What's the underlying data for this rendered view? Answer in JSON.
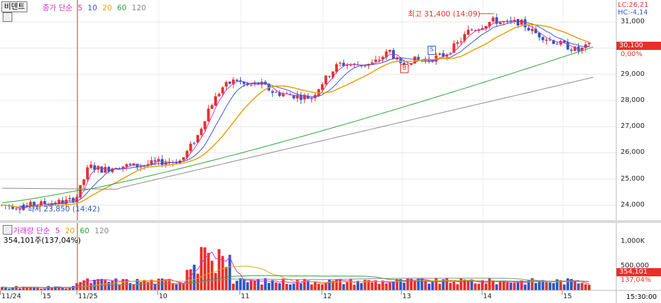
{
  "price_panel": {
    "legend_name": "비덴트",
    "series_label": "종가 단순",
    "periods": [
      {
        "label": "5",
        "color": "#cc33cc"
      },
      {
        "label": "10",
        "color": "#3355cc"
      },
      {
        "label": "20",
        "color": "#e6a317"
      },
      {
        "label": "60",
        "color": "#2e9e3a"
      },
      {
        "label": "120",
        "color": "#888888"
      }
    ],
    "lc": "LC:26,21",
    "hc": "HC:-4,14",
    "axis_ticks": [
      "31,000",
      "30,000",
      "29,000",
      "28,000",
      "27,000",
      "26,000",
      "25,000",
      "24,000"
    ],
    "current_price": "30,100",
    "current_change": "0,00%",
    "high_annotation": "최고 31,400 (14:09)",
    "low_annotation": "최저 23,850 (14:42)",
    "markers": [
      "B",
      "S"
    ]
  },
  "volume_panel": {
    "series_label": "거래량 단순",
    "periods": [
      {
        "label": "5",
        "color": "#cc33cc"
      },
      {
        "label": "20",
        "color": "#e6a317"
      },
      {
        "label": "60",
        "color": "#2e9e3a"
      },
      {
        "label": "120",
        "color": "#888888"
      }
    ],
    "volume_text": "354,101주(137,04%)",
    "axis_ticks": [
      "1,000K",
      "500,000"
    ],
    "current_volume": "354,101",
    "current_ratio": "137,04%"
  },
  "x_axis": {
    "labels": [
      "11/24",
      "15",
      "11/25",
      "10",
      "11",
      "12",
      "13",
      "14",
      "15"
    ],
    "time": "15:30:00"
  },
  "colors": {
    "up": "#e8302a",
    "down": "#2d58c8",
    "ma5": "#cc33cc",
    "ma10": "#3355cc",
    "ma20": "#e6a317",
    "ma60": "#2e9e3a",
    "ma120": "#888888",
    "session_line": "#e8302a"
  },
  "chart_data": {
    "type": "candlestick",
    "x": [
      "11/24",
      "15",
      "11/25",
      "10",
      "11",
      "12",
      "13",
      "14",
      "15"
    ],
    "ylim": [
      23700,
      31500
    ],
    "high": 31400,
    "low": 23850,
    "last": 30100,
    "ma_periods": [
      5,
      10,
      20,
      60,
      120
    ],
    "ma_last_estimates": {
      "ma5": 30250,
      "ma10": 30300,
      "ma20": 30450,
      "ma60": 30050,
      "ma120": 28850
    },
    "volume_last": 354101,
    "volume_ylim": [
      0,
      1150000
    ]
  }
}
